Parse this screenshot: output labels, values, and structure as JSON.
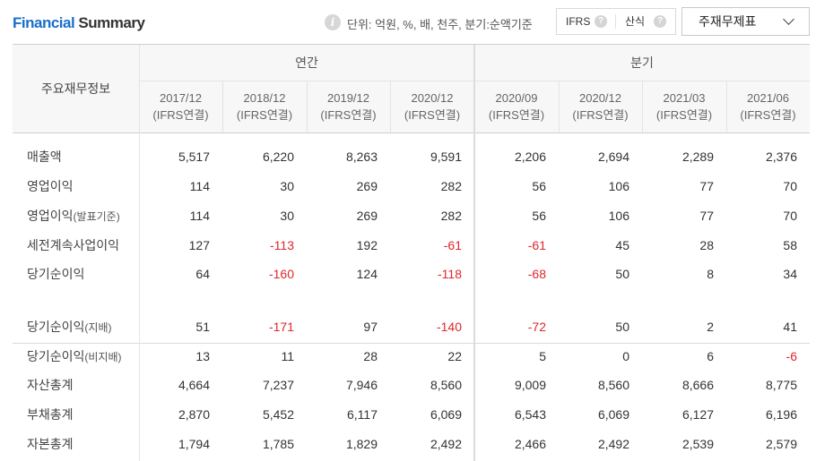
{
  "header": {
    "title_part1": "Financial",
    "title_part2": "Summary",
    "info_icon": "i",
    "unit_text": "단위: 억원, %, 배, 천주, 분기:순액기준",
    "toggle": {
      "ifrs_label": "IFRS",
      "calc_label": "산식",
      "help_icon": "?"
    },
    "statement_select": {
      "selected": "주재무제표"
    }
  },
  "table": {
    "corner_label": "주요재무정보",
    "groups": [
      "연간",
      "분기"
    ],
    "columns": [
      {
        "period": "2017/12",
        "basis": "(IFRS연결)"
      },
      {
        "period": "2018/12",
        "basis": "(IFRS연결)"
      },
      {
        "period": "2019/12",
        "basis": "(IFRS연결)"
      },
      {
        "period": "2020/12",
        "basis": "(IFRS연결)"
      },
      {
        "period": "2020/09",
        "basis": "(IFRS연결)"
      },
      {
        "period": "2020/12",
        "basis": "(IFRS연결)"
      },
      {
        "period": "2021/03",
        "basis": "(IFRS연결)"
      },
      {
        "period": "2021/06",
        "basis": "(IFRS연결)"
      }
    ],
    "rows": [
      {
        "label": "매출액",
        "sub": "",
        "values": [
          "5,517",
          "6,220",
          "8,263",
          "9,591",
          "2,206",
          "2,694",
          "2,289",
          "2,376"
        ]
      },
      {
        "label": "영업이익",
        "sub": "",
        "values": [
          "114",
          "30",
          "269",
          "282",
          "56",
          "106",
          "77",
          "70"
        ]
      },
      {
        "label": "영업이익",
        "sub": "(발표기준)",
        "values": [
          "114",
          "30",
          "269",
          "282",
          "56",
          "106",
          "77",
          "70"
        ]
      },
      {
        "label": "세전계속사업이익",
        "sub": "",
        "values": [
          "127",
          "-113",
          "192",
          "-61",
          "-61",
          "45",
          "28",
          "58"
        ]
      },
      {
        "label": "당기순이익",
        "sub": "",
        "values": [
          "64",
          "-160",
          "124",
          "-118",
          "-68",
          "50",
          "8",
          "34"
        ]
      },
      {
        "label": "당기순이익",
        "sub": "(지배)",
        "values": [
          "51",
          "-171",
          "97",
          "-140",
          "-72",
          "50",
          "2",
          "41"
        ]
      },
      {
        "label": "당기순이익",
        "sub": "(비지배)",
        "values": [
          "13",
          "11",
          "28",
          "22",
          "5",
          "0",
          "6",
          "-6"
        ]
      },
      {
        "label": "자산총계",
        "sub": "",
        "values": [
          "4,664",
          "7,237",
          "7,946",
          "8,560",
          "9,009",
          "8,560",
          "8,666",
          "8,775"
        ]
      },
      {
        "label": "부채총계",
        "sub": "",
        "values": [
          "2,870",
          "5,452",
          "6,117",
          "6,069",
          "6,543",
          "6,069",
          "6,127",
          "6,196"
        ]
      },
      {
        "label": "자본총계",
        "sub": "",
        "values": [
          "1,794",
          "1,785",
          "1,829",
          "2,492",
          "2,466",
          "2,492",
          "2,539",
          "2,579"
        ]
      }
    ]
  },
  "colors": {
    "accent": "#1a6fc9",
    "negative": "#e0262c",
    "header_bg": "#f7f7f7"
  }
}
